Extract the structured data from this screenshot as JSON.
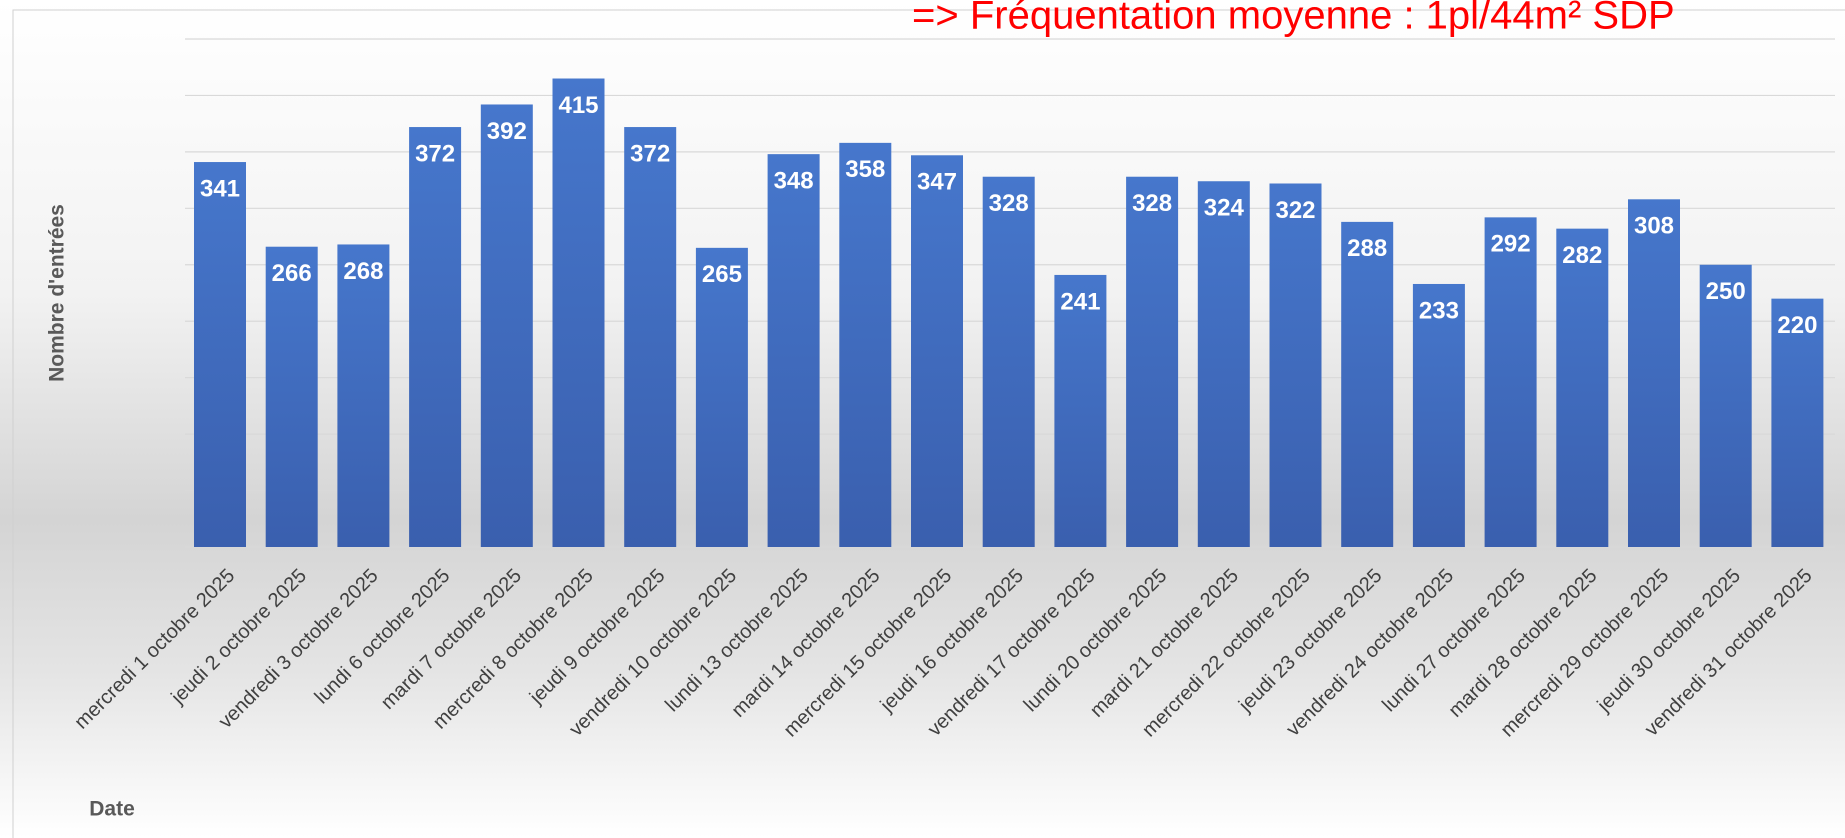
{
  "chart_data": {
    "type": "bar",
    "title": "=> Fréquentation moyenne : 1pl/44m² SDP",
    "y_label": "Nombre d'entrées",
    "x_label": "Date",
    "categories": [
      "mercredi 1 octobre 2025",
      "jeudi 2 octobre 2025",
      "vendredi 3 octobre 2025",
      "lundi 6 octobre 2025",
      "mardi 7 octobre 2025",
      "mercredi 8 octobre 2025",
      "jeudi 9 octobre 2025",
      "vendredi 10 octobre 2025",
      "lundi 13 octobre 2025",
      "mardi 14 octobre 2025",
      "mercredi 15 octobre 2025",
      "jeudi 16 octobre 2025",
      "vendredi 17 octobre 2025",
      "lundi 20 octobre 2025",
      "mardi 21 octobre 2025",
      "mercredi 22 octobre 2025",
      "jeudi 23 octobre 2025",
      "vendredi 24 octobre 2025",
      "lundi 27 octobre 2025",
      "mardi 28 octobre 2025",
      "mercredi 29 octobre 2025",
      "jeudi 30 octobre 2025",
      "vendredi 31 octobre 2025"
    ],
    "values": [
      341,
      266,
      268,
      372,
      392,
      415,
      372,
      265,
      348,
      358,
      347,
      328,
      241,
      328,
      324,
      322,
      288,
      233,
      292,
      282,
      308,
      250,
      220
    ],
    "color": "#4472c4",
    "ylim": [
      0,
      450
    ],
    "yticks": [
      0,
      50,
      100,
      150,
      200,
      250,
      300,
      350,
      400,
      450
    ],
    "grid": true
  }
}
